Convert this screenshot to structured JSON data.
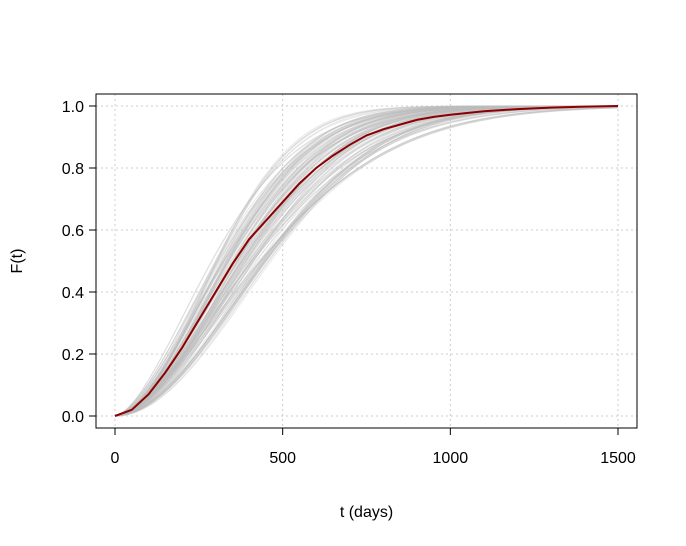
{
  "chart_data": {
    "type": "line",
    "title": "",
    "xlabel": "t (days)",
    "ylabel": "F(t)",
    "xlim": [
      0,
      1500
    ],
    "ylim": [
      0,
      1
    ],
    "x_ticks": [
      0,
      500,
      1000,
      1500
    ],
    "x_tick_labels": [
      "0",
      "500",
      "1000",
      "1500"
    ],
    "y_ticks": [
      0,
      0.2,
      0.4,
      0.6,
      0.8,
      1.0
    ],
    "y_tick_labels": [
      "0.0",
      "0.2",
      "0.4",
      "0.6",
      "0.8",
      "1.0"
    ],
    "grid": true,
    "colors": {
      "mean_curve": "#8b0000",
      "samples": "#bdbdbd",
      "grid": "#cccccc"
    },
    "series": [
      {
        "role": "mean-curve",
        "x": [
          0,
          50,
          100,
          150,
          200,
          250,
          300,
          350,
          400,
          450,
          500,
          550,
          600,
          650,
          700,
          750,
          800,
          850,
          900,
          950,
          1000,
          1100,
          1200,
          1300,
          1400,
          1500
        ],
        "y": [
          0,
          0.02,
          0.07,
          0.14,
          0.22,
          0.31,
          0.4,
          0.49,
          0.57,
          0.63,
          0.69,
          0.75,
          0.8,
          0.84,
          0.875,
          0.905,
          0.925,
          0.94,
          0.955,
          0.965,
          0.972,
          0.983,
          0.99,
          0.995,
          0.998,
          1.0
        ]
      }
    ],
    "sample_band": {
      "count": 120,
      "description_shape": "weibull",
      "shape": [
        1.6,
        2.0
      ],
      "scale": [
        360,
        560
      ]
    }
  }
}
